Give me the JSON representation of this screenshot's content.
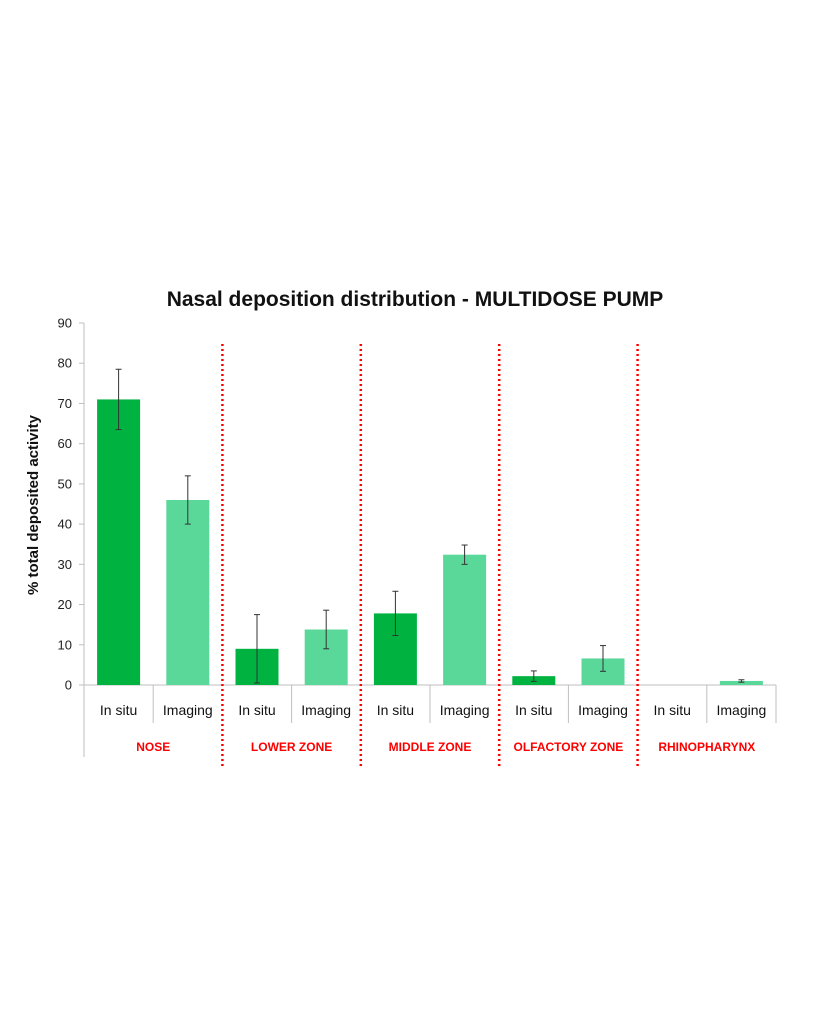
{
  "chart_data": {
    "type": "bar",
    "title": "Nasal deposition distribution - MULTIDOSE PUMP",
    "xlabel": "",
    "ylabel": "% total deposited activity",
    "ylim": [
      0,
      90
    ],
    "yticks": [
      0,
      10,
      20,
      30,
      40,
      50,
      60,
      70,
      80,
      90
    ],
    "grid": false,
    "legend": "none",
    "groups": [
      "NOSE",
      "LOWER ZONE",
      "MIDDLE ZONE",
      "OLFACTORY ZONE",
      "RHINOPHARYNX"
    ],
    "subcategories": [
      "In situ",
      "Imaging"
    ],
    "series": [
      {
        "values": [
          71,
          9,
          17.8,
          2.2,
          0
        ],
        "errors": [
          7.5,
          8.5,
          5.5,
          1.3,
          0
        ],
        "color": "#00b341"
      },
      {
        "values": [
          46,
          13.8,
          32.4,
          6.6,
          1.0
        ],
        "errors": [
          6,
          4.8,
          2.4,
          3.2,
          0.3
        ],
        "color": "#5ad89a"
      }
    ],
    "group_label_color": "#ff0000",
    "separator_color": "#ff0000"
  }
}
